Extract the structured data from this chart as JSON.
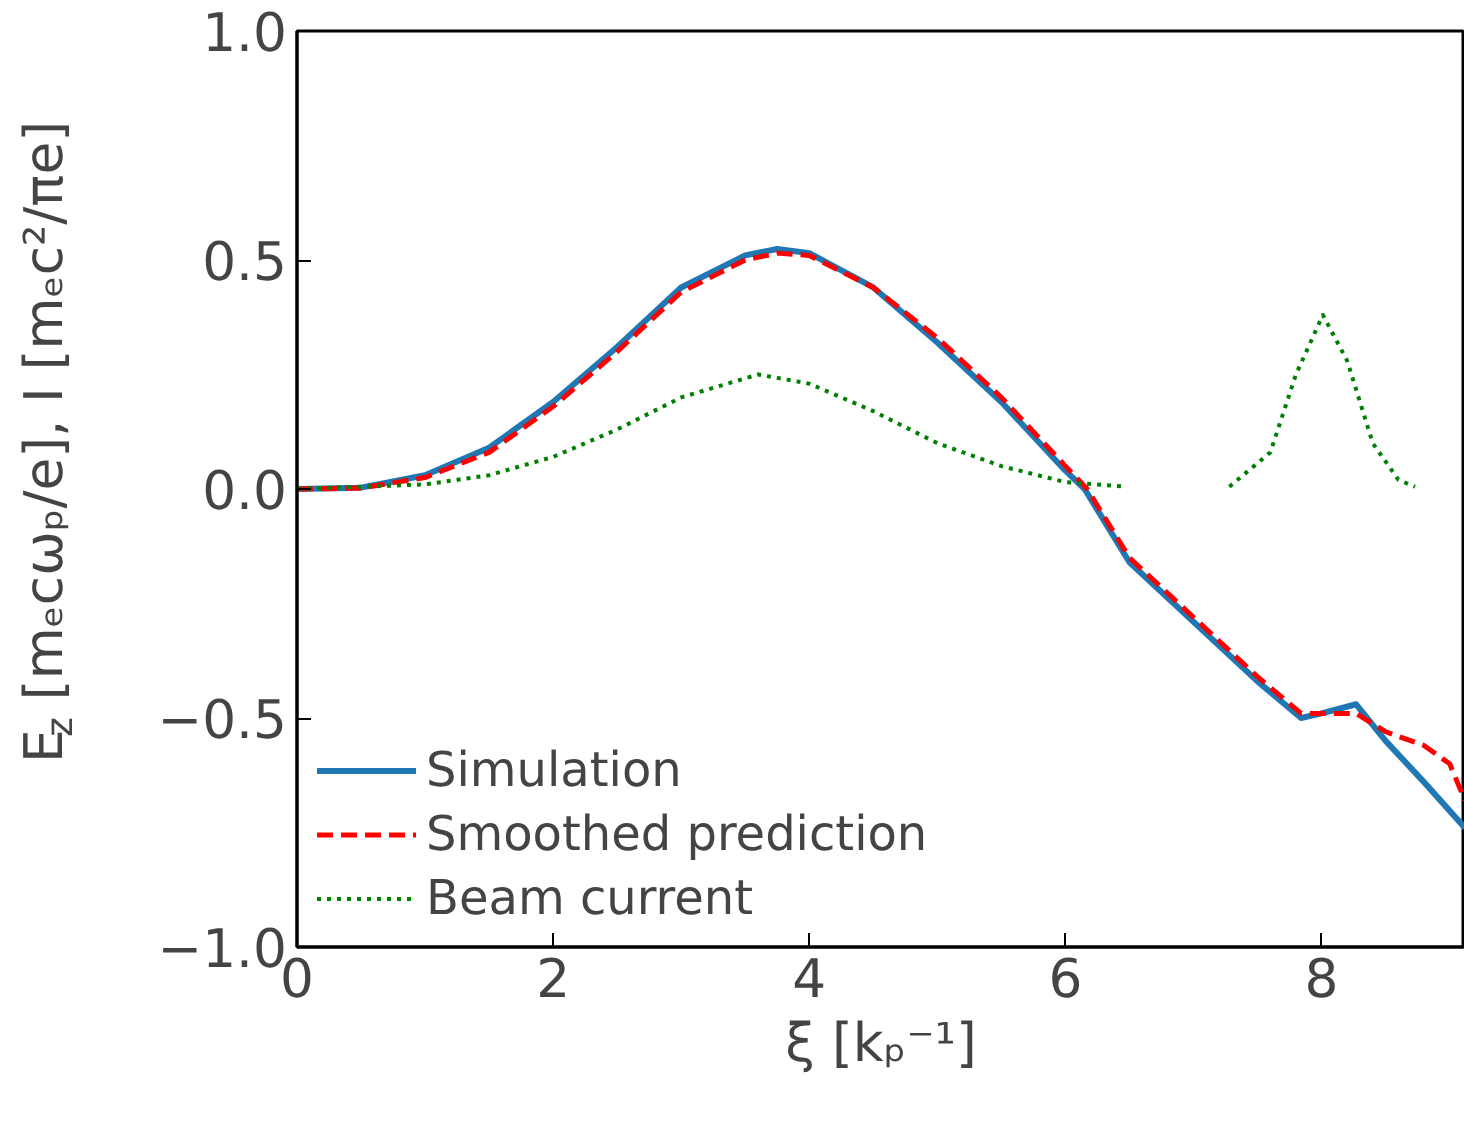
{
  "chart_data": {
    "type": "line",
    "xlabel": "ξ [kₚ⁻¹]",
    "ylabel": "E$_{z}$ [mₑcωₚ/e],  I [mₑc²/πe]",
    "xlim": [
      0,
      9.12
    ],
    "ylim": [
      -1.0,
      1.0
    ],
    "xticks": [
      0,
      2,
      4,
      6,
      8
    ],
    "yticks": [
      {
        "value": -1.0,
        "label": "−1.0"
      },
      {
        "value": -0.5,
        "label": "−0.5"
      },
      {
        "value": 0.0,
        "label": "0.0"
      },
      {
        "value": 0.5,
        "label": "0.5"
      },
      {
        "value": 1.0,
        "label": "1.0"
      }
    ],
    "grid": false,
    "legend": "bottom left",
    "series": [
      {
        "name": "Simulation",
        "color": "#1f77b4",
        "line_style": "solid",
        "x": [
          0,
          0.5,
          1,
          1.5,
          2,
          2.5,
          3,
          3.5,
          3.75,
          4,
          4.5,
          5,
          5.5,
          6,
          6.15,
          6.5,
          7,
          7.5,
          7.84,
          8.0,
          8.27,
          8.5,
          8.8,
          9.12
        ],
        "values": [
          0,
          0.003,
          0.03,
          0.09,
          0.19,
          0.31,
          0.44,
          0.51,
          0.524,
          0.515,
          0.44,
          0.32,
          0.19,
          0.04,
          0,
          -0.16,
          -0.29,
          -0.42,
          -0.5,
          -0.49,
          -0.47,
          -0.55,
          -0.64,
          -0.74
        ]
      },
      {
        "name": "Smoothed prediction",
        "color": "#ff0000",
        "line_style": "dashed",
        "x": [
          0,
          0.5,
          1,
          1.5,
          2,
          2.5,
          3,
          3.5,
          3.75,
          4,
          4.5,
          5,
          5.5,
          6,
          6.17,
          6.5,
          7,
          7.5,
          7.84,
          8.0,
          8.27,
          8.5,
          8.8,
          9.0,
          9.12
        ],
        "values": [
          0,
          0.002,
          0.025,
          0.08,
          0.18,
          0.3,
          0.43,
          0.5,
          0.515,
          0.51,
          0.44,
          0.33,
          0.2,
          0.05,
          0,
          -0.15,
          -0.28,
          -0.41,
          -0.49,
          -0.49,
          -0.49,
          -0.53,
          -0.56,
          -0.6,
          -0.68
        ]
      },
      {
        "name": "Beam current",
        "color": "#008000",
        "line_style": "dotted",
        "x": [
          0,
          1,
          1.5,
          2,
          2.5,
          3,
          3.6,
          4,
          4.5,
          5,
          5.5,
          6,
          6.47,
          6.9,
          7.28,
          7.6,
          7.8,
          8.01,
          8.2,
          8.4,
          8.6,
          8.73
        ],
        "values": [
          0,
          0.01,
          0.03,
          0.07,
          0.13,
          0.2,
          0.25,
          0.23,
          0.17,
          0.1,
          0.05,
          0.015,
          0.005,
          null,
          0.005,
          0.08,
          0.25,
          0.38,
          0.28,
          0.1,
          0.02,
          0.005
        ]
      }
    ]
  }
}
